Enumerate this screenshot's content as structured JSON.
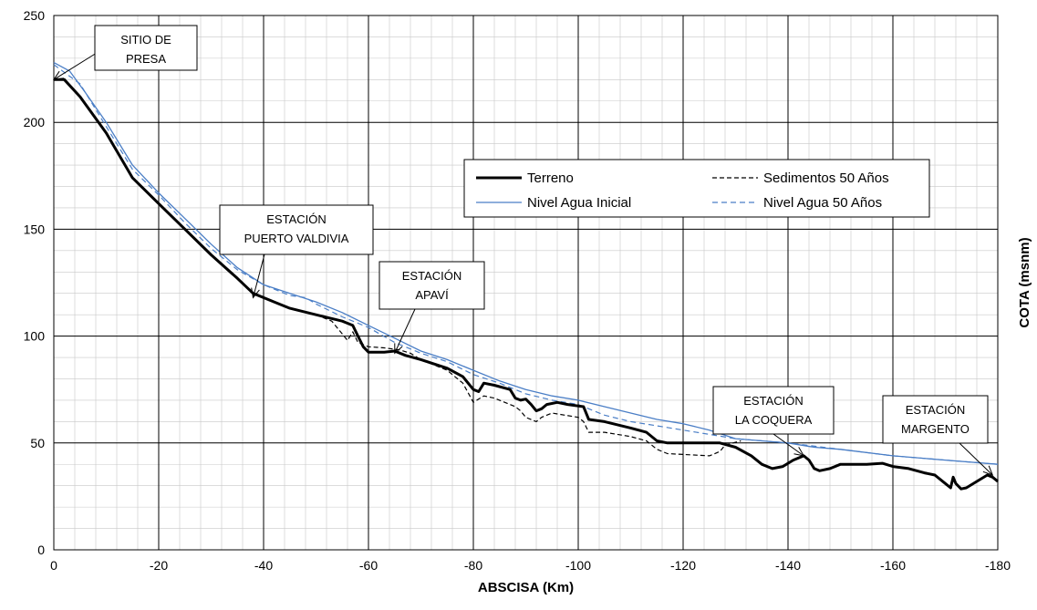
{
  "chart_data": {
    "type": "line",
    "xlabel": "ABSCISA (Km)",
    "ylabel": "COTA (msnm)",
    "xlim": [
      0,
      -180
    ],
    "ylim": [
      0,
      250
    ],
    "x_ticks": [
      0,
      -20,
      -40,
      -60,
      -80,
      -100,
      -120,
      -140,
      -160,
      -180
    ],
    "x_tick_labels": [
      "0",
      "-20",
      "-40",
      "-60",
      "-80",
      "-100",
      "-120",
      "-140",
      "-160",
      "-180"
    ],
    "y_ticks": [
      0,
      50,
      100,
      150,
      200,
      250
    ],
    "y_tick_labels": [
      "0",
      "50",
      "100",
      "150",
      "200",
      "250"
    ],
    "grid": "major and minor",
    "legend_position": "center-right",
    "series": [
      {
        "name": "Terreno",
        "color": "#000000",
        "style": "solid-thick",
        "points": [
          [
            0,
            220
          ],
          [
            -2,
            220
          ],
          [
            -5,
            212
          ],
          [
            -10,
            195
          ],
          [
            -15,
            174
          ],
          [
            -20,
            162
          ],
          [
            -25,
            150
          ],
          [
            -30,
            138
          ],
          [
            -35,
            127
          ],
          [
            -38,
            120
          ],
          [
            -42,
            116
          ],
          [
            -45,
            113
          ],
          [
            -50,
            110
          ],
          [
            -55,
            107
          ],
          [
            -57,
            105
          ],
          [
            -58,
            100
          ],
          [
            -59,
            95
          ],
          [
            -60,
            92.5
          ],
          [
            -63,
            92.5
          ],
          [
            -65,
            93
          ],
          [
            -67,
            91
          ],
          [
            -70,
            89
          ],
          [
            -75,
            85
          ],
          [
            -78,
            81
          ],
          [
            -80,
            75
          ],
          [
            -81,
            74
          ],
          [
            -82,
            78
          ],
          [
            -84,
            77
          ],
          [
            -87,
            75
          ],
          [
            -88,
            71
          ],
          [
            -89,
            70
          ],
          [
            -90,
            70.5
          ],
          [
            -91,
            68
          ],
          [
            -92,
            65
          ],
          [
            -93,
            66
          ],
          [
            -94,
            68
          ],
          [
            -96,
            69
          ],
          [
            -98,
            68
          ],
          [
            -101,
            67
          ],
          [
            -102,
            61
          ],
          [
            -105,
            60
          ],
          [
            -110,
            57
          ],
          [
            -113,
            55
          ],
          [
            -115,
            51
          ],
          [
            -117,
            50
          ],
          [
            -122,
            50
          ],
          [
            -127,
            50
          ],
          [
            -130,
            48
          ],
          [
            -133,
            44
          ],
          [
            -135,
            40
          ],
          [
            -137,
            38
          ],
          [
            -139,
            39
          ],
          [
            -141,
            42
          ],
          [
            -143,
            44
          ],
          [
            -144,
            42
          ],
          [
            -145,
            38
          ],
          [
            -146,
            37
          ],
          [
            -148,
            38
          ],
          [
            -150,
            40
          ],
          [
            -155,
            40
          ],
          [
            -158,
            40.5
          ],
          [
            -160,
            39
          ],
          [
            -163,
            38
          ],
          [
            -166,
            36
          ],
          [
            -168,
            35
          ],
          [
            -170,
            31
          ],
          [
            -171,
            29
          ],
          [
            -171.5,
            34
          ],
          [
            -172,
            31
          ],
          [
            -173,
            28.5
          ],
          [
            -174,
            29
          ],
          [
            -176,
            32
          ],
          [
            -178,
            35
          ],
          [
            -179,
            34
          ],
          [
            -180,
            32
          ]
        ]
      },
      {
        "name": "Sedimentos 50 Años",
        "color": "#000000",
        "style": "dashed",
        "points": [
          [
            -50,
            110
          ],
          [
            -53,
            107
          ],
          [
            -55,
            101
          ],
          [
            -56,
            98
          ],
          [
            -57,
            102
          ],
          [
            -58,
            97
          ],
          [
            -60,
            95
          ],
          [
            -63,
            94.5
          ],
          [
            -66,
            93.5
          ],
          [
            -68,
            92
          ],
          [
            -70,
            89
          ],
          [
            -75,
            84
          ],
          [
            -78,
            78
          ],
          [
            -80,
            69
          ],
          [
            -82,
            72
          ],
          [
            -84,
            71
          ],
          [
            -88,
            67
          ],
          [
            -89,
            65
          ],
          [
            -90,
            62
          ],
          [
            -92,
            60
          ],
          [
            -93,
            62
          ],
          [
            -95,
            64
          ],
          [
            -100,
            62
          ],
          [
            -101,
            60
          ],
          [
            -102,
            55
          ],
          [
            -105,
            55
          ],
          [
            -110,
            53
          ],
          [
            -113,
            51
          ],
          [
            -115,
            47
          ],
          [
            -117,
            45
          ],
          [
            -125,
            44
          ],
          [
            -127,
            46
          ],
          [
            -128,
            49
          ],
          [
            -131,
            51
          ]
        ]
      },
      {
        "name": "Nivel Agua Inicial",
        "color": "#4a7ec6",
        "style": "solid-thin",
        "points": [
          [
            0,
            228
          ],
          [
            -3,
            224
          ],
          [
            -6,
            214
          ],
          [
            -10,
            200
          ],
          [
            -15,
            180
          ],
          [
            -20,
            167
          ],
          [
            -25,
            155
          ],
          [
            -30,
            143
          ],
          [
            -35,
            132
          ],
          [
            -40,
            124
          ],
          [
            -45,
            120
          ],
          [
            -50,
            116
          ],
          [
            -55,
            111
          ],
          [
            -60,
            105
          ],
          [
            -65,
            99
          ],
          [
            -70,
            93
          ],
          [
            -75,
            89
          ],
          [
            -80,
            84
          ],
          [
            -85,
            79
          ],
          [
            -90,
            75
          ],
          [
            -95,
            72
          ],
          [
            -100,
            70
          ],
          [
            -105,
            67
          ],
          [
            -110,
            64
          ],
          [
            -115,
            61
          ],
          [
            -120,
            59
          ],
          [
            -125,
            56
          ],
          [
            -130,
            52
          ],
          [
            -135,
            51
          ],
          [
            -140,
            50
          ],
          [
            -145,
            48
          ],
          [
            -150,
            47
          ],
          [
            -160,
            44
          ],
          [
            -170,
            42
          ],
          [
            -180,
            40
          ]
        ]
      },
      {
        "name": "Nivel Agua 50 Años",
        "color": "#4a7ec6",
        "style": "dashed-thin",
        "points": [
          [
            0,
            227
          ],
          [
            -5,
            218
          ],
          [
            -10,
            198
          ],
          [
            -15,
            178
          ],
          [
            -20,
            166
          ],
          [
            -25,
            153
          ],
          [
            -30,
            141
          ],
          [
            -35,
            131
          ],
          [
            -40,
            124
          ],
          [
            -45,
            119
          ],
          [
            -48,
            118
          ],
          [
            -50,
            115
          ],
          [
            -55,
            109
          ],
          [
            -60,
            104
          ],
          [
            -65,
            97
          ],
          [
            -70,
            92
          ],
          [
            -75,
            88
          ],
          [
            -80,
            82
          ],
          [
            -85,
            78
          ],
          [
            -90,
            73
          ],
          [
            -95,
            70
          ],
          [
            -100,
            68
          ],
          [
            -105,
            63
          ],
          [
            -110,
            60
          ],
          [
            -115,
            58
          ],
          [
            -120,
            56
          ],
          [
            -125,
            54
          ],
          [
            -130,
            52
          ],
          [
            -140,
            50
          ],
          [
            -150,
            47
          ],
          [
            -160,
            44
          ],
          [
            -170,
            42
          ],
          [
            -180,
            40
          ]
        ]
      }
    ],
    "annotations": [
      {
        "lines": [
          "SITIO DE",
          "PRESA"
        ],
        "target": [
          0,
          220
        ]
      },
      {
        "lines": [
          "ESTACIÓN",
          "PUERTO VALDIVIA"
        ],
        "target": [
          -38,
          118
        ]
      },
      {
        "lines": [
          "ESTACIÓN",
          "APAVÍ"
        ],
        "target": [
          -65,
          92
        ]
      },
      {
        "lines": [
          "ESTACIÓN",
          "LA COQUERA"
        ],
        "target": [
          -143,
          44
        ]
      },
      {
        "lines": [
          "ESTACIÓN",
          "MARGENTO"
        ],
        "target": [
          -179,
          35
        ]
      }
    ]
  }
}
